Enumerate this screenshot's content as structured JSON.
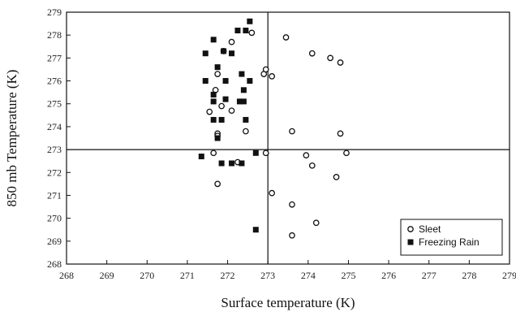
{
  "chart_data": {
    "type": "scatter",
    "xlabel": "Surface temperature (K)",
    "ylabel": "850 mb Temperature (K)",
    "xlim": [
      268,
      279
    ],
    "ylim": [
      268,
      279
    ],
    "xticks": [
      268,
      269,
      270,
      271,
      272,
      273,
      274,
      275,
      276,
      277,
      278,
      279
    ],
    "yticks": [
      268,
      269,
      270,
      271,
      272,
      273,
      274,
      275,
      276,
      277,
      278,
      279
    ],
    "reference_lines": {
      "x": 273,
      "y": 273
    },
    "legend_position": "bottom-right",
    "series": [
      {
        "name": "Sleet",
        "marker": "open-circle",
        "points": [
          [
            272.6,
            278.1
          ],
          [
            272.1,
            277.7
          ],
          [
            271.9,
            277.3
          ],
          [
            271.75,
            276.3
          ],
          [
            271.7,
            275.6
          ],
          [
            271.55,
            274.65
          ],
          [
            271.85,
            274.9
          ],
          [
            272.1,
            274.7
          ],
          [
            271.75,
            273.7
          ],
          [
            271.75,
            273.6
          ],
          [
            272.45,
            273.8
          ],
          [
            272.9,
            276.3
          ],
          [
            272.95,
            276.5
          ],
          [
            273.1,
            276.2
          ],
          [
            273.45,
            277.9
          ],
          [
            274.1,
            277.2
          ],
          [
            274.55,
            277.0
          ],
          [
            274.8,
            276.8
          ],
          [
            273.6,
            273.8
          ],
          [
            274.8,
            273.7
          ],
          [
            271.65,
            272.85
          ],
          [
            272.25,
            272.45
          ],
          [
            272.95,
            272.85
          ],
          [
            273.95,
            272.75
          ],
          [
            274.95,
            272.85
          ],
          [
            274.1,
            272.3
          ],
          [
            274.7,
            271.8
          ],
          [
            271.75,
            271.5
          ],
          [
            273.1,
            271.1
          ],
          [
            273.6,
            270.6
          ],
          [
            274.2,
            269.8
          ],
          [
            273.6,
            269.25
          ]
        ]
      },
      {
        "name": "Freezing Rain",
        "marker": "filled-square",
        "points": [
          [
            272.55,
            278.6
          ],
          [
            272.25,
            278.2
          ],
          [
            272.45,
            278.2
          ],
          [
            271.65,
            277.8
          ],
          [
            271.45,
            277.2
          ],
          [
            271.9,
            277.3
          ],
          [
            272.1,
            277.2
          ],
          [
            271.75,
            276.6
          ],
          [
            272.35,
            276.3
          ],
          [
            271.45,
            276.0
          ],
          [
            271.95,
            276.0
          ],
          [
            272.55,
            276.0
          ],
          [
            272.4,
            275.6
          ],
          [
            271.65,
            275.4
          ],
          [
            271.65,
            275.1
          ],
          [
            271.95,
            275.2
          ],
          [
            272.3,
            275.1
          ],
          [
            272.4,
            275.1
          ],
          [
            271.85,
            274.3
          ],
          [
            271.65,
            274.3
          ],
          [
            272.45,
            274.3
          ],
          [
            271.75,
            273.5
          ],
          [
            271.35,
            272.7
          ],
          [
            272.7,
            272.85
          ],
          [
            271.85,
            272.4
          ],
          [
            272.1,
            272.4
          ],
          [
            272.35,
            272.4
          ],
          [
            272.7,
            269.5
          ]
        ]
      }
    ]
  }
}
